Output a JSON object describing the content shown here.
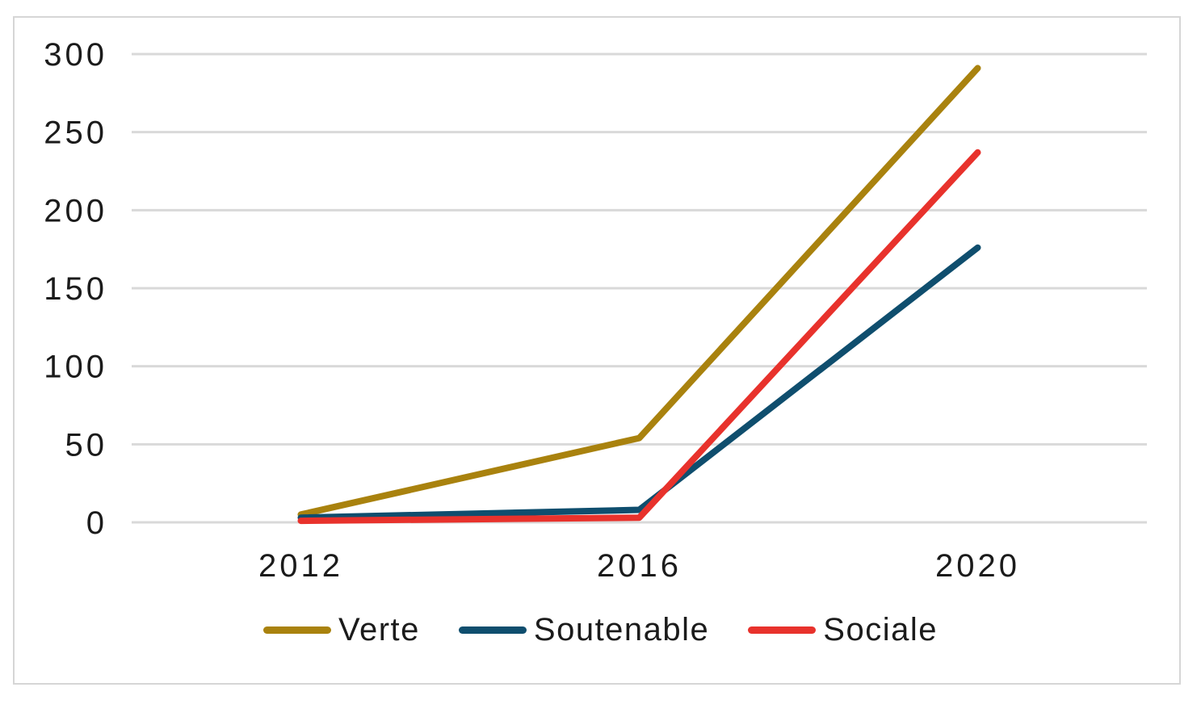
{
  "chart_data": {
    "type": "line",
    "title": "",
    "xlabel": "",
    "ylabel": "",
    "categories": [
      "2012",
      "2016",
      "2020"
    ],
    "series": [
      {
        "name": "Verte",
        "color": "#A9820E",
        "values": [
          5,
          54,
          291
        ]
      },
      {
        "name": "Soutenable",
        "color": "#0F4E6E",
        "values": [
          3,
          8,
          176
        ]
      },
      {
        "name": "Sociale",
        "color": "#E8322C",
        "values": [
          1,
          3,
          237
        ]
      }
    ],
    "ylim": [
      0,
      300
    ],
    "yticks": [
      0,
      50,
      100,
      150,
      200,
      250,
      300
    ],
    "grid": true,
    "legend_position": "bottom",
    "line_width": 8
  },
  "colors": {
    "grid": "#D9D9D9",
    "border": "#D6D6D6",
    "text": "#1B1B1B",
    "background": "#FFFFFF"
  }
}
